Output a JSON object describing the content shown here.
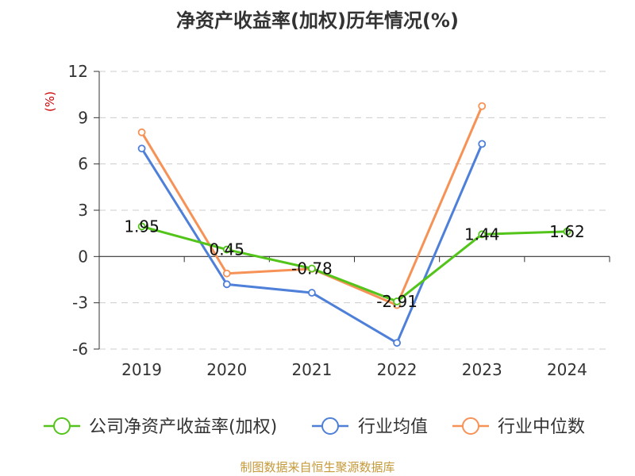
{
  "chart_data": {
    "type": "line",
    "title": "净资产收益率(加权)历年情况(%)",
    "ylabel": "(%)",
    "x": [
      "2019",
      "2020",
      "2021",
      "2022",
      "2023",
      "2024"
    ],
    "yticks": [
      "12",
      "9",
      "6",
      "3",
      "0",
      "-3",
      "-6"
    ],
    "ylim": [
      -6,
      12
    ],
    "grid": true,
    "legend_position": "bottom",
    "series": [
      {
        "name": "公司净资产收益率(加权)",
        "color": "#52c41a",
        "values": [
          1.95,
          0.45,
          -0.78,
          -2.91,
          1.44,
          1.62
        ],
        "labels": [
          "1.95",
          "0.45",
          "-0.78",
          "-2.91",
          "1.44",
          "1.62"
        ]
      },
      {
        "name": "行业均值",
        "color": "#4e7fd9",
        "values": [
          7.0,
          -1.8,
          -2.35,
          -5.6,
          7.3,
          null
        ]
      },
      {
        "name": "行业中位数",
        "color": "#f79256",
        "values": [
          8.05,
          -1.1,
          -0.8,
          -3.15,
          9.75,
          null
        ]
      }
    ]
  },
  "source_text": "制图数据来自恒生聚源数据库",
  "colors": {
    "title": "#333333",
    "unit": "#cc0000",
    "source": "#c49a3a",
    "grid": "#cccccc",
    "axis": "#333333"
  }
}
